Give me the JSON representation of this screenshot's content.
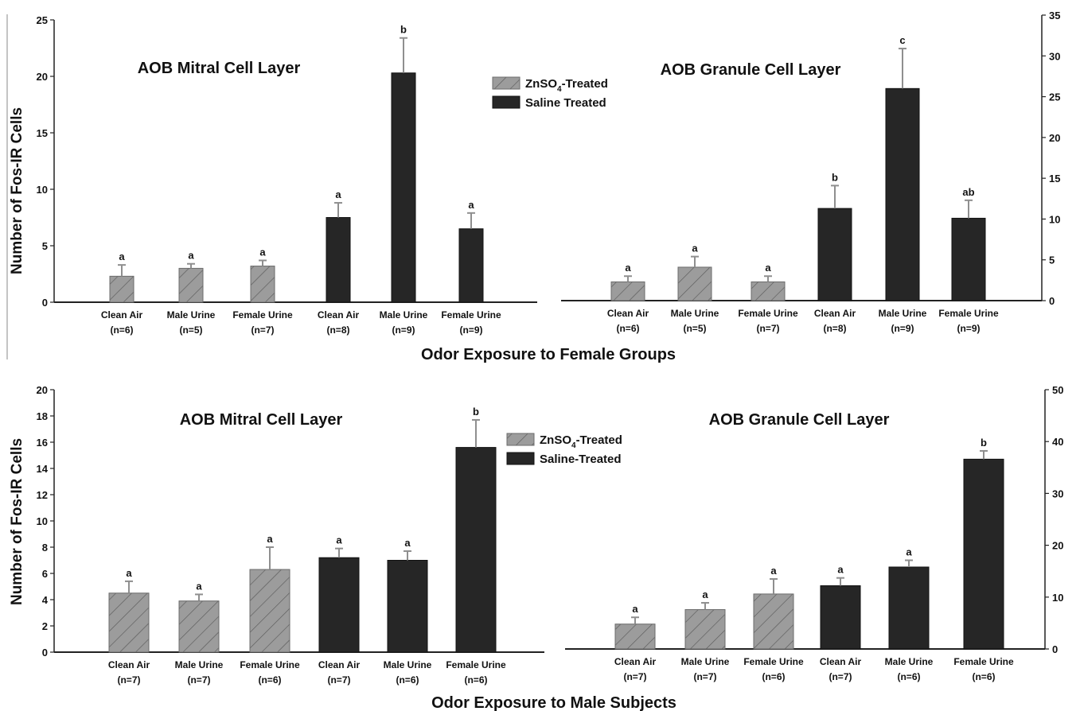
{
  "colors": {
    "zinc": "#9c9c9c",
    "saline": "#262626",
    "axis": "#222222",
    "errorbar": "#8f8f8f"
  },
  "figure": {
    "top_xtitle": "Odor Exposure to Female Groups",
    "bottom_xtitle": "Odor Exposure to Male Subjects"
  },
  "chart_data": [
    {
      "type": "bar",
      "title": "AOB Mitral Cell Layer",
      "ylabel": "Number of Fos-IR Cells",
      "ylim": [
        0,
        25
      ],
      "yticks": [
        "0",
        "5",
        "10",
        "15",
        "20",
        "25"
      ],
      "categories": [
        "Clean Air",
        "Male Urine",
        "Female Urine",
        "Clean Air",
        "Male Urine",
        "Female Urine"
      ],
      "n_labels": [
        "(n=6)",
        "(n=5)",
        "(n=7)",
        "(n=8)",
        "(n=9)",
        "(n=9)"
      ],
      "groups": [
        "zinc",
        "zinc",
        "zinc",
        "saline",
        "saline",
        "saline"
      ],
      "values": [
        2.3,
        3.0,
        3.2,
        7.5,
        20.3,
        6.5
      ],
      "errors": [
        1.0,
        0.4,
        0.5,
        1.3,
        3.1,
        1.4
      ],
      "sig": [
        "a",
        "a",
        "a",
        "a",
        "b",
        "a"
      ],
      "legend": {
        "entries": [
          "ZnSO",
          "-Treated",
          "Saline Treated"
        ],
        "subscript": "4"
      }
    },
    {
      "type": "bar",
      "title": "AOB Granule Cell Layer",
      "ylabel": "",
      "ylim": [
        0,
        35
      ],
      "yticks": [
        "0",
        "5",
        "10",
        "15",
        "20",
        "25",
        "30",
        "35"
      ],
      "categories": [
        "Clean Air",
        "Male Urine",
        "Female Urine",
        "Clean Air",
        "Male Urine",
        "Female Urine"
      ],
      "n_labels": [
        "(n=6)",
        "(n=5)",
        "(n=7)",
        "(n=8)",
        "(n=9)",
        "(n=9)"
      ],
      "groups": [
        "zinc",
        "zinc",
        "zinc",
        "saline",
        "saline",
        "saline"
      ],
      "values": [
        2.3,
        4.1,
        2.3,
        11.3,
        26.0,
        10.1
      ],
      "errors": [
        0.7,
        1.3,
        0.7,
        2.8,
        4.9,
        2.2
      ],
      "sig": [
        "a",
        "a",
        "a",
        "b",
        "c",
        "ab"
      ]
    },
    {
      "type": "bar",
      "title": "AOB Mitral Cell Layer",
      "ylabel": "Number of Fos-IR Cells",
      "ylim": [
        0,
        20
      ],
      "yticks": [
        "0",
        "2",
        "4",
        "6",
        "8",
        "10",
        "12",
        "14",
        "16",
        "18",
        "20"
      ],
      "categories": [
        "Clean Air",
        "Male Urine",
        "Female Urine",
        "Clean Air",
        "Male Urine",
        "Female Urine"
      ],
      "n_labels": [
        "(n=7)",
        "(n=7)",
        "(n=6)",
        "(n=7)",
        "(n=6)",
        "(n=6)"
      ],
      "groups": [
        "zinc",
        "zinc",
        "zinc",
        "saline",
        "saline",
        "saline"
      ],
      "values": [
        4.5,
        3.9,
        6.3,
        7.2,
        7.0,
        15.6
      ],
      "errors": [
        0.9,
        0.5,
        1.7,
        0.7,
        0.7,
        2.1
      ],
      "sig": [
        "a",
        "a",
        "a",
        "a",
        "a",
        "b"
      ],
      "legend": {
        "entries": [
          "ZnSO",
          "-Treated",
          "Saline-Treated"
        ],
        "subscript": "4"
      }
    },
    {
      "type": "bar",
      "title": "AOB Granule Cell Layer",
      "ylabel": "",
      "ylim": [
        0,
        50
      ],
      "yticks": [
        "0",
        "10",
        "20",
        "30",
        "40",
        "50"
      ],
      "categories": [
        "Clean Air",
        "Male Urine",
        "Female Urine",
        "Clean Air",
        "Male Urine",
        "Female Urine"
      ],
      "n_labels": [
        "(n=7)",
        "(n=7)",
        "(n=6)",
        "(n=7)",
        "(n=6)",
        "(n=6)"
      ],
      "groups": [
        "zinc",
        "zinc",
        "zinc",
        "saline",
        "saline",
        "saline"
      ],
      "values": [
        4.8,
        7.6,
        10.6,
        12.2,
        15.8,
        36.6
      ],
      "errors": [
        1.3,
        1.3,
        2.9,
        1.5,
        1.3,
        1.6
      ],
      "sig": [
        "a",
        "a",
        "a",
        "a",
        "a",
        "b"
      ]
    }
  ]
}
